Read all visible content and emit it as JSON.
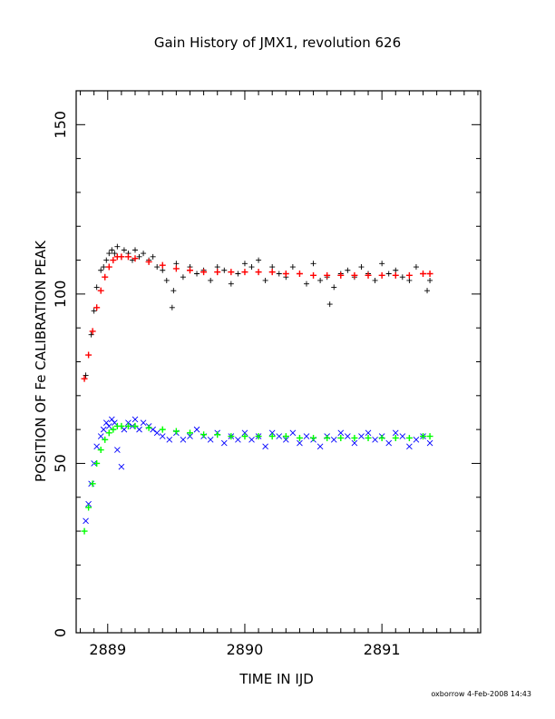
{
  "chart_data": {
    "type": "scatter",
    "title": "Gain History of JMX1, revolution 626",
    "xlabel": "TIME IN IJD",
    "ylabel": "POSITION OF Fe CALIBRATION PEAK",
    "xlim": [
      2888.77,
      2891.72
    ],
    "ylim": [
      0,
      160
    ],
    "xticks": [
      2889,
      2890,
      2891
    ],
    "yticks": [
      0,
      50,
      100,
      150
    ],
    "grid": false,
    "legend": "none",
    "footer": "oxborrow  4-Feb-2008 14:43",
    "series": [
      {
        "marker": "+",
        "color": "#000000",
        "x": [
          2888.84,
          2888.86,
          2888.88,
          2888.9,
          2888.92,
          2888.95,
          2888.97,
          2888.99,
          2889.01,
          2889.03,
          2889.05,
          2889.07,
          2889.1,
          2889.12,
          2889.15,
          2889.18,
          2889.2,
          2889.23,
          2889.26,
          2889.3,
          2889.33,
          2889.36,
          2889.4,
          2889.43,
          2889.47,
          2889.48,
          2889.5,
          2889.55,
          2889.6,
          2889.65,
          2889.7,
          2889.75,
          2889.8,
          2889.85,
          2889.9,
          2889.95,
          2890.0,
          2890.05,
          2890.1,
          2890.15,
          2890.2,
          2890.25,
          2890.3,
          2890.35,
          2890.4,
          2890.45,
          2890.5,
          2890.55,
          2890.6,
          2890.62,
          2890.65,
          2890.7,
          2890.75,
          2890.8,
          2890.85,
          2890.9,
          2890.95,
          2891.0,
          2891.05,
          2891.1,
          2891.15,
          2891.2,
          2891.25,
          2891.3,
          2891.33,
          2891.35
        ],
        "y": [
          76,
          82,
          88,
          95,
          102,
          107,
          108,
          110,
          112,
          113,
          112,
          114,
          111,
          113,
          112,
          110,
          113,
          111,
          112,
          110,
          111,
          108,
          107,
          104,
          96,
          101,
          109,
          105,
          108,
          106,
          107,
          104,
          108,
          107,
          103,
          106,
          109,
          108,
          110,
          104,
          108,
          106,
          105,
          108,
          106,
          103,
          109,
          104,
          105,
          97,
          102,
          106,
          107,
          105,
          108,
          106,
          104,
          109,
          106,
          107,
          105,
          104,
          108,
          106,
          101,
          104
        ]
      },
      {
        "name": "fit",
        "marker": "+",
        "color": "#ff0000",
        "x": [
          2888.83,
          2888.86,
          2888.89,
          2888.92,
          2888.95,
          2888.98,
          2889.01,
          2889.04,
          2889.07,
          2889.1,
          2889.15,
          2889.2,
          2889.3,
          2889.4,
          2889.5,
          2889.6,
          2889.7,
          2889.8,
          2889.9,
          2890.0,
          2890.1,
          2890.2,
          2890.3,
          2890.4,
          2890.5,
          2890.6,
          2890.7,
          2890.8,
          2890.9,
          2891.0,
          2891.1,
          2891.2,
          2891.3,
          2891.35
        ],
        "y": [
          75,
          82,
          89,
          96,
          101,
          105,
          108,
          110,
          111,
          111,
          111,
          110.5,
          109.5,
          108.5,
          107.5,
          107,
          106.5,
          106.5,
          106.5,
          106.5,
          106.5,
          106.5,
          106,
          106,
          105.5,
          105.5,
          105.5,
          105.5,
          105.5,
          105.5,
          105.5,
          105.5,
          106,
          106
        ]
      },
      {
        "marker": "x",
        "color": "#0000ff",
        "x": [
          2888.84,
          2888.86,
          2888.88,
          2888.9,
          2888.92,
          2888.95,
          2888.97,
          2888.99,
          2889.01,
          2889.03,
          2889.05,
          2889.07,
          2889.1,
          2889.12,
          2889.15,
          2889.18,
          2889.2,
          2889.23,
          2889.26,
          2889.3,
          2889.33,
          2889.36,
          2889.4,
          2889.45,
          2889.5,
          2889.55,
          2889.6,
          2889.65,
          2889.7,
          2889.75,
          2889.8,
          2889.85,
          2889.9,
          2889.95,
          2890.0,
          2890.05,
          2890.1,
          2890.15,
          2890.2,
          2890.25,
          2890.3,
          2890.35,
          2890.4,
          2890.45,
          2890.5,
          2890.55,
          2890.6,
          2890.65,
          2890.7,
          2890.75,
          2890.8,
          2890.85,
          2890.9,
          2890.95,
          2891.0,
          2891.05,
          2891.1,
          2891.15,
          2891.2,
          2891.25,
          2891.3,
          2891.35
        ],
        "y": [
          33,
          38,
          44,
          50,
          55,
          58,
          60,
          62,
          61,
          63,
          62,
          54,
          49,
          60,
          62,
          61,
          63,
          60,
          62,
          61,
          60,
          59,
          58,
          57,
          59,
          57,
          58,
          60,
          58,
          57,
          59,
          56,
          58,
          57,
          59,
          57,
          58,
          55,
          59,
          58,
          57,
          59,
          56,
          58,
          57,
          55,
          58,
          57,
          59,
          58,
          56,
          58,
          59,
          57,
          58,
          56,
          59,
          58,
          55,
          57,
          58,
          56
        ]
      },
      {
        "name": "fit",
        "marker": "+",
        "color": "#00ff00",
        "x": [
          2888.83,
          2888.86,
          2888.89,
          2888.92,
          2888.95,
          2888.98,
          2889.01,
          2889.04,
          2889.07,
          2889.1,
          2889.15,
          2889.2,
          2889.3,
          2889.4,
          2889.5,
          2889.6,
          2889.7,
          2889.8,
          2889.9,
          2890.0,
          2890.1,
          2890.2,
          2890.3,
          2890.4,
          2890.5,
          2890.6,
          2890.7,
          2890.8,
          2890.9,
          2891.0,
          2891.1,
          2891.2,
          2891.3,
          2891.35
        ],
        "y": [
          30,
          37,
          44,
          50,
          54,
          57,
          59,
          60,
          61,
          61,
          61,
          61,
          60.5,
          60,
          59.5,
          59,
          58.5,
          58.5,
          58,
          58,
          58,
          58,
          58,
          57.5,
          57.5,
          57.5,
          57.5,
          57.5,
          57.5,
          57.5,
          57.5,
          57.5,
          58,
          58
        ]
      }
    ]
  }
}
